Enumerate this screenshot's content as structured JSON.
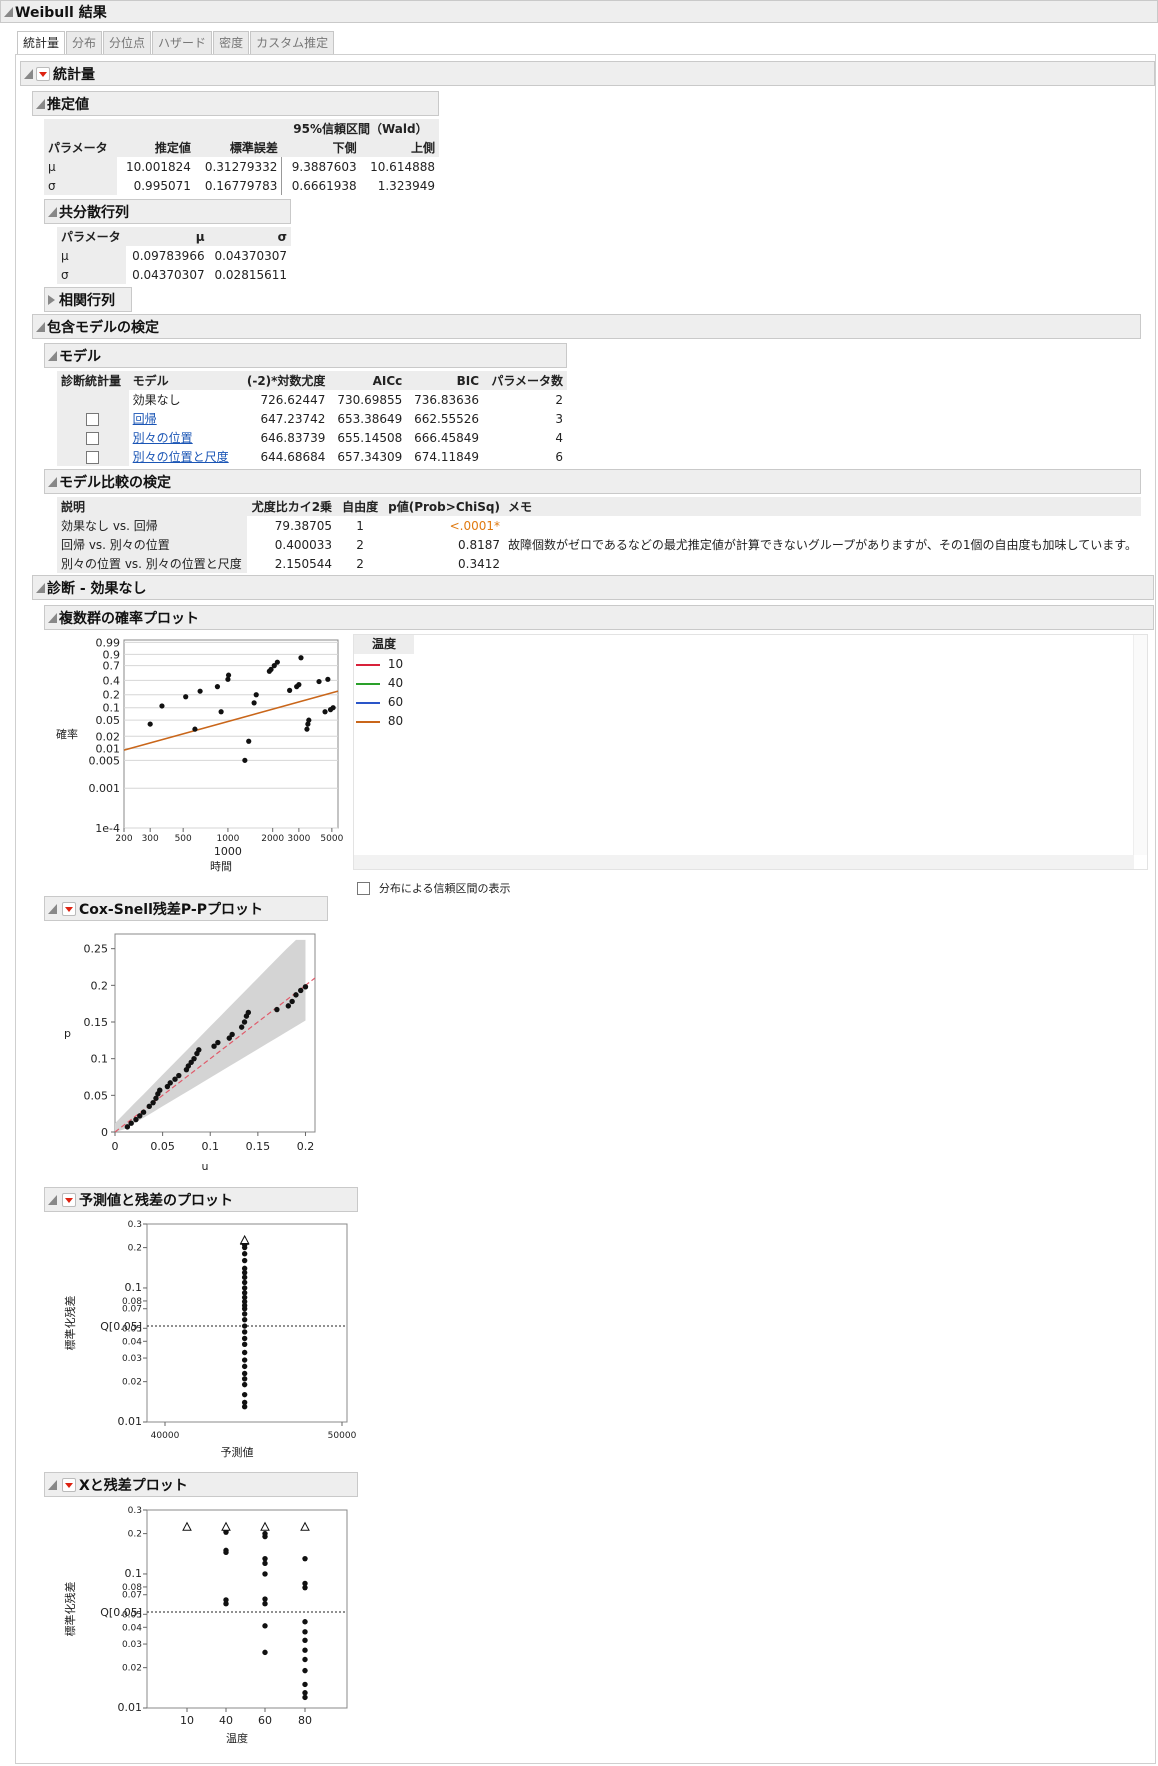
{
  "title": "Weibull 結果",
  "tabs": [
    "統計量",
    "分布",
    "分位点",
    "ハザード",
    "密度",
    "カスタム推定"
  ],
  "sections": {
    "stats": "統計量",
    "estimates": "推定値",
    "covariance": "共分散行列",
    "correlation": "相関行列",
    "nested": "包含モデルの検定",
    "model": "モデル",
    "model_compare": "モデル比較の検定",
    "diag": "診断 - 効果なし",
    "multiprob": "複数群の確率プロット",
    "coxsnell": "Cox-Snell残差P-Pプロット",
    "pred_resid": "予測値と残差のプロット",
    "x_resid": "Xと残差プロット"
  },
  "estimates": {
    "ci_header": "95%信頼区間（Wald）",
    "columns": [
      "パラメータ",
      "推定値",
      "標準誤差",
      "下側",
      "上側"
    ],
    "rows": [
      [
        "μ",
        "10.001824",
        "0.31279332",
        "9.3887603",
        "10.614888"
      ],
      [
        "σ",
        "0.995071",
        "0.16779783",
        "0.6661938",
        "1.323949"
      ]
    ]
  },
  "covariance": {
    "columns": [
      "パラメータ",
      "μ",
      "σ"
    ],
    "rows": [
      [
        "μ",
        "0.09783966",
        "0.04370307"
      ],
      [
        "σ",
        "0.04370307",
        "0.02815611"
      ]
    ]
  },
  "model_table": {
    "columns": [
      "診断統計量",
      "モデル",
      "(-2)*対数尤度",
      "AICc",
      "BIC",
      "パラメータ数"
    ],
    "rows": [
      [
        "",
        "効果なし",
        "726.62447",
        "730.69855",
        "736.83636",
        "2"
      ],
      [
        "chk",
        "回帰",
        "647.23742",
        "653.38649",
        "662.55526",
        "3"
      ],
      [
        "chk",
        "別々の位置",
        "646.83739",
        "655.14508",
        "666.45849",
        "4"
      ],
      [
        "chk",
        "別々の位置と尺度",
        "644.68684",
        "657.34309",
        "674.11849",
        "6"
      ]
    ]
  },
  "compare_table": {
    "columns": [
      "説明",
      "尤度比カイ2乗",
      "自由度",
      "p値(Prob>ChiSq)",
      "メモ"
    ],
    "rows": [
      [
        "効果なし vs. 回帰",
        "79.38705",
        "1",
        "<.0001*",
        ""
      ],
      [
        "回帰 vs. 別々の位置",
        "0.400033",
        "2",
        "0.8187",
        "故障個数がゼロであるなどの最尤推定値が計算できないグループがありますが、その1個の自由度も加味しています。"
      ],
      [
        "別々の位置 vs. 別々の位置と尺度",
        "2.150544",
        "2",
        "0.3412",
        ""
      ]
    ]
  },
  "legend": {
    "title": "温度",
    "items": [
      {
        "label": "10",
        "color": "#d8213a"
      },
      {
        "label": "40",
        "color": "#2aa02a"
      },
      {
        "label": "60",
        "color": "#2a55c8"
      },
      {
        "label": "80",
        "color": "#c9661a"
      }
    ]
  },
  "ci_checkbox_label": "分布による信頼区間の表示",
  "chart_data": [
    {
      "type": "scatter",
      "name": "multiprob",
      "xlabel": "時間",
      "ylabel": "確率",
      "x_scale": "log",
      "y_scale": "weibull-probability",
      "xlim": [
        200,
        5500
      ],
      "x_ticks": [
        "200",
        "300",
        "500",
        "1000",
        "2000",
        "3000",
        "5000"
      ],
      "y_ticks": [
        "0.99",
        "0.9",
        "0.7",
        "0.4",
        "0.2",
        "0.1",
        "0.05",
        "0.02",
        "0.01",
        "0.005",
        "0.001",
        "1e-4"
      ],
      "x_center_label": "1000",
      "points": [
        [
          300,
          0.04
        ],
        [
          360,
          0.11
        ],
        [
          520,
          0.18
        ],
        [
          600,
          0.03
        ],
        [
          650,
          0.24
        ],
        [
          850,
          0.3
        ],
        [
          900,
          0.08
        ],
        [
          1000,
          0.42
        ],
        [
          1010,
          0.5
        ],
        [
          1300,
          0.005
        ],
        [
          1380,
          0.015
        ],
        [
          1500,
          0.13
        ],
        [
          1550,
          0.2
        ],
        [
          1900,
          0.58
        ],
        [
          1950,
          0.62
        ],
        [
          2050,
          0.7
        ],
        [
          2150,
          0.77
        ],
        [
          2600,
          0.25
        ],
        [
          2900,
          0.3
        ],
        [
          3000,
          0.33
        ],
        [
          3100,
          0.85
        ],
        [
          3400,
          0.03
        ],
        [
          3450,
          0.04
        ],
        [
          3500,
          0.05
        ],
        [
          4100,
          0.38
        ],
        [
          4500,
          0.08
        ],
        [
          4700,
          0.42
        ],
        [
          4900,
          0.09
        ],
        [
          5100,
          0.1
        ]
      ],
      "fit_line": [
        [
          200,
          0.009
        ],
        [
          5500,
          0.24
        ]
      ]
    },
    {
      "type": "scatter",
      "name": "coxsnell",
      "xlabel": "u",
      "ylabel": "p",
      "xlim": [
        0,
        0.21
      ],
      "ylim": [
        0,
        0.27
      ],
      "x_ticks": [
        0,
        0.05,
        0.1,
        0.15,
        0.2
      ],
      "y_ticks": [
        0,
        0.05,
        0.1,
        0.15,
        0.2,
        0.25
      ],
      "points": [
        [
          0.013,
          0.007
        ],
        [
          0.017,
          0.012
        ],
        [
          0.022,
          0.017
        ],
        [
          0.026,
          0.022
        ],
        [
          0.03,
          0.027
        ],
        [
          0.036,
          0.035
        ],
        [
          0.04,
          0.04
        ],
        [
          0.043,
          0.046
        ],
        [
          0.045,
          0.052
        ],
        [
          0.047,
          0.057
        ],
        [
          0.055,
          0.062
        ],
        [
          0.058,
          0.067
        ],
        [
          0.063,
          0.072
        ],
        [
          0.067,
          0.077
        ],
        [
          0.075,
          0.085
        ],
        [
          0.077,
          0.09
        ],
        [
          0.08,
          0.095
        ],
        [
          0.083,
          0.1
        ],
        [
          0.086,
          0.107
        ],
        [
          0.088,
          0.112
        ],
        [
          0.104,
          0.117
        ],
        [
          0.108,
          0.122
        ],
        [
          0.12,
          0.128
        ],
        [
          0.123,
          0.133
        ],
        [
          0.133,
          0.143
        ],
        [
          0.136,
          0.15
        ],
        [
          0.138,
          0.158
        ],
        [
          0.14,
          0.163
        ],
        [
          0.17,
          0.167
        ],
        [
          0.182,
          0.172
        ],
        [
          0.186,
          0.178
        ],
        [
          0.19,
          0.187
        ],
        [
          0.195,
          0.193
        ],
        [
          0.2,
          0.198
        ]
      ]
    },
    {
      "type": "scatter",
      "name": "pred_resid",
      "xlabel": "予測値",
      "ylabel": "標準化残差",
      "y_scale": "log",
      "ylim": [
        0.01,
        0.3
      ],
      "x_ticks": [
        "40000",
        "50000"
      ],
      "y_ticks": [
        "0.3",
        "0.2",
        "0.1",
        "0.08",
        "0.07",
        "0.05",
        "0.04",
        "0.03",
        "0.02",
        "0.01"
      ],
      "ref_label": "Q[0.05]",
      "ref_value": 0.052,
      "points_x": 44500,
      "points_y": [
        0.013,
        0.014,
        0.016,
        0.019,
        0.021,
        0.023,
        0.026,
        0.029,
        0.033,
        0.038,
        0.042,
        0.047,
        0.052,
        0.058,
        0.064,
        0.07,
        0.074,
        0.079,
        0.085,
        0.092,
        0.1,
        0.11,
        0.12,
        0.13,
        0.14,
        0.16,
        0.18,
        0.2,
        0.21,
        0.215,
        0.22
      ],
      "censored_y": [
        0.225,
        0.228
      ]
    },
    {
      "type": "scatter",
      "name": "x_resid",
      "xlabel": "温度",
      "ylabel": "標準化残差",
      "y_scale": "log",
      "ylim": [
        0.01,
        0.3
      ],
      "x_ticks": [
        "10",
        "40",
        "60",
        "80"
      ],
      "y_ticks": [
        "0.3",
        "0.2",
        "0.1",
        "0.08",
        "0.07",
        "0.05",
        "0.04",
        "0.03",
        "0.02",
        "0.01"
      ],
      "ref_label": "Q[0.05]",
      "ref_value": 0.052,
      "groups": [
        {
          "x": 10,
          "dots": [],
          "censored": [
            0.225
          ]
        },
        {
          "x": 40,
          "dots": [
            0.06,
            0.064,
            0.145,
            0.15,
            0.205,
            0.21,
            0.215,
            0.22
          ],
          "censored": [
            0.225
          ]
        },
        {
          "x": 60,
          "dots": [
            0.026,
            0.041,
            0.06,
            0.065,
            0.1,
            0.12,
            0.13,
            0.19,
            0.2
          ],
          "censored": [
            0.225
          ]
        },
        {
          "x": 80,
          "dots": [
            0.012,
            0.013,
            0.015,
            0.019,
            0.023,
            0.027,
            0.032,
            0.037,
            0.044,
            0.079,
            0.085,
            0.13
          ],
          "censored": [
            0.225
          ]
        }
      ]
    }
  ]
}
